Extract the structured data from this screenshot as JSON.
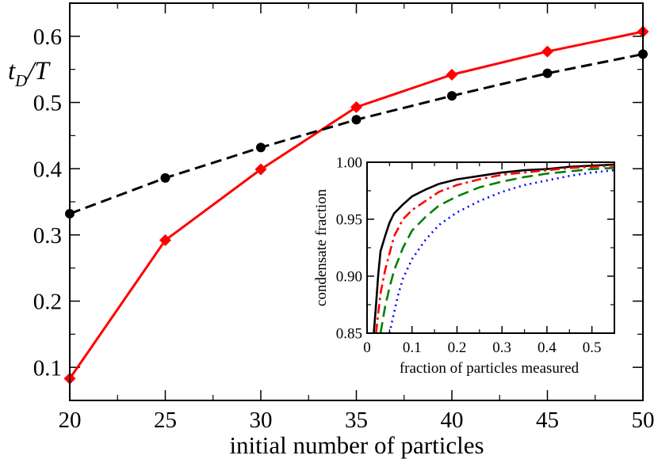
{
  "chart_data": [
    {
      "type": "line",
      "title": "",
      "xlabel": "initial number of particles",
      "ylabel": "t_D/T",
      "ylabel_main": "t",
      "ylabel_sub": "D",
      "ylabel_tail": "/T",
      "xlim": [
        20,
        50
      ],
      "ylim": [
        0.05,
        0.65
      ],
      "xticks": [
        20,
        25,
        30,
        35,
        40,
        45,
        50
      ],
      "yticks": [
        0.1,
        0.2,
        0.3,
        0.4,
        0.5,
        0.6
      ],
      "xtick_labels": [
        "20",
        "25",
        "30",
        "35",
        "40",
        "45",
        "50"
      ],
      "ytick_labels": [
        "0.1",
        "0.2",
        "0.3",
        "0.4",
        "0.5",
        "0.6"
      ],
      "x": [
        20,
        25,
        30,
        35,
        40,
        45,
        50
      ],
      "series": [
        {
          "name": "diamonds (red solid)",
          "color": "#ff0000",
          "marker": "diamond",
          "dash": "solid",
          "values": [
            0.083,
            0.292,
            0.399,
            0.493,
            0.542,
            0.577,
            0.607
          ]
        },
        {
          "name": "circles (black dashed)",
          "color": "#000000",
          "marker": "circle",
          "dash": "dashed",
          "values": [
            0.332,
            0.386,
            0.432,
            0.474,
            0.51,
            0.544,
            0.573
          ]
        }
      ]
    },
    {
      "type": "line",
      "title": "",
      "xlabel": "fraction of particles measured",
      "ylabel": "condensate fraction",
      "xlim": [
        0,
        0.55
      ],
      "ylim": [
        0.85,
        1.0
      ],
      "xticks": [
        0,
        0.1,
        0.2,
        0.3,
        0.4,
        0.5
      ],
      "yticks": [
        0.85,
        0.9,
        0.95,
        1.0
      ],
      "xtick_labels": [
        "0",
        "0.1",
        "0.2",
        "0.3",
        "0.4",
        "0.5"
      ],
      "ytick_labels": [
        "0.85",
        "0.90",
        "0.95",
        "1.00"
      ],
      "series": [
        {
          "name": "black solid",
          "color": "#000000",
          "dash": "solid",
          "x": [
            0.015,
            0.02,
            0.025,
            0.03,
            0.04,
            0.05,
            0.06,
            0.08,
            0.1,
            0.13,
            0.16,
            0.2,
            0.25,
            0.3,
            0.35,
            0.4,
            0.45,
            0.5,
            0.55
          ],
          "y": [
            0.85,
            0.875,
            0.902,
            0.922,
            0.935,
            0.947,
            0.955,
            0.963,
            0.97,
            0.976,
            0.981,
            0.985,
            0.988,
            0.991,
            0.993,
            0.994,
            0.996,
            0.997,
            0.998
          ]
        },
        {
          "name": "red dash-dot",
          "color": "#ff0000",
          "dash": "dashdot",
          "x": [
            0.02,
            0.025,
            0.03,
            0.04,
            0.05,
            0.06,
            0.08,
            0.1,
            0.13,
            0.16,
            0.2,
            0.25,
            0.3,
            0.35,
            0.4,
            0.45,
            0.5,
            0.55
          ],
          "y": [
            0.85,
            0.868,
            0.885,
            0.905,
            0.92,
            0.935,
            0.95,
            0.958,
            0.966,
            0.974,
            0.98,
            0.985,
            0.989,
            0.991,
            0.993,
            0.995,
            0.996,
            0.997
          ]
        },
        {
          "name": "green dashed",
          "color": "#008000",
          "dash": "dashed",
          "x": [
            0.03,
            0.04,
            0.05,
            0.06,
            0.08,
            0.1,
            0.13,
            0.16,
            0.2,
            0.25,
            0.3,
            0.35,
            0.4,
            0.45,
            0.5,
            0.55
          ],
          "y": [
            0.85,
            0.873,
            0.89,
            0.905,
            0.925,
            0.94,
            0.952,
            0.962,
            0.97,
            0.978,
            0.983,
            0.987,
            0.99,
            0.992,
            0.994,
            0.995
          ]
        },
        {
          "name": "blue dotted",
          "color": "#0000ff",
          "dash": "dotted",
          "x": [
            0.05,
            0.06,
            0.07,
            0.08,
            0.1,
            0.13,
            0.16,
            0.2,
            0.25,
            0.3,
            0.35,
            0.4,
            0.45,
            0.5,
            0.55
          ],
          "y": [
            0.85,
            0.868,
            0.885,
            0.898,
            0.915,
            0.932,
            0.945,
            0.956,
            0.966,
            0.974,
            0.98,
            0.984,
            0.988,
            0.991,
            0.993
          ]
        }
      ]
    }
  ]
}
